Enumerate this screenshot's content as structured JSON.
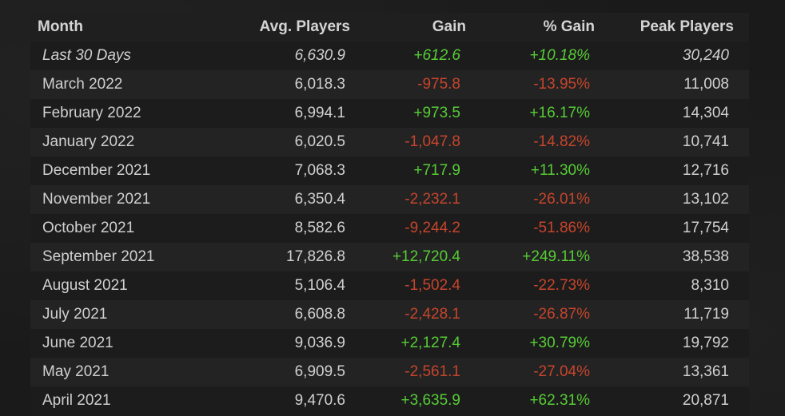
{
  "columns": {
    "month": "Month",
    "avg": "Avg. Players",
    "gain": "Gain",
    "pct": "% Gain",
    "peak": "Peak Players"
  },
  "colors": {
    "positive": "#57cc36",
    "negative": "#c6452c"
  },
  "rows": [
    {
      "month": "Last 30 Days",
      "avg": "6,630.9",
      "gain": "+612.6",
      "pct": "+10.18%",
      "peak": "30,240",
      "trend": "pos"
    },
    {
      "month": "March 2022",
      "avg": "6,018.3",
      "gain": "-975.8",
      "pct": "-13.95%",
      "peak": "11,008",
      "trend": "neg"
    },
    {
      "month": "February 2022",
      "avg": "6,994.1",
      "gain": "+973.5",
      "pct": "+16.17%",
      "peak": "14,304",
      "trend": "pos"
    },
    {
      "month": "January 2022",
      "avg": "6,020.5",
      "gain": "-1,047.8",
      "pct": "-14.82%",
      "peak": "10,741",
      "trend": "neg"
    },
    {
      "month": "December 2021",
      "avg": "7,068.3",
      "gain": "+717.9",
      "pct": "+11.30%",
      "peak": "12,716",
      "trend": "pos"
    },
    {
      "month": "November 2021",
      "avg": "6,350.4",
      "gain": "-2,232.1",
      "pct": "-26.01%",
      "peak": "13,102",
      "trend": "neg"
    },
    {
      "month": "October 2021",
      "avg": "8,582.6",
      "gain": "-9,244.2",
      "pct": "-51.86%",
      "peak": "17,754",
      "trend": "neg"
    },
    {
      "month": "September 2021",
      "avg": "17,826.8",
      "gain": "+12,720.4",
      "pct": "+249.11%",
      "peak": "38,538",
      "trend": "pos"
    },
    {
      "month": "August 2021",
      "avg": "5,106.4",
      "gain": "-1,502.4",
      "pct": "-22.73%",
      "peak": "8,310",
      "trend": "neg"
    },
    {
      "month": "July 2021",
      "avg": "6,608.8",
      "gain": "-2,428.1",
      "pct": "-26.87%",
      "peak": "11,719",
      "trend": "neg"
    },
    {
      "month": "June 2021",
      "avg": "9,036.9",
      "gain": "+2,127.4",
      "pct": "+30.79%",
      "peak": "19,792",
      "trend": "pos"
    },
    {
      "month": "May 2021",
      "avg": "6,909.5",
      "gain": "-2,561.1",
      "pct": "-27.04%",
      "peak": "13,361",
      "trend": "neg"
    },
    {
      "month": "April 2021",
      "avg": "9,470.6",
      "gain": "+3,635.9",
      "pct": "+62.31%",
      "peak": "20,871",
      "trend": "pos"
    }
  ]
}
